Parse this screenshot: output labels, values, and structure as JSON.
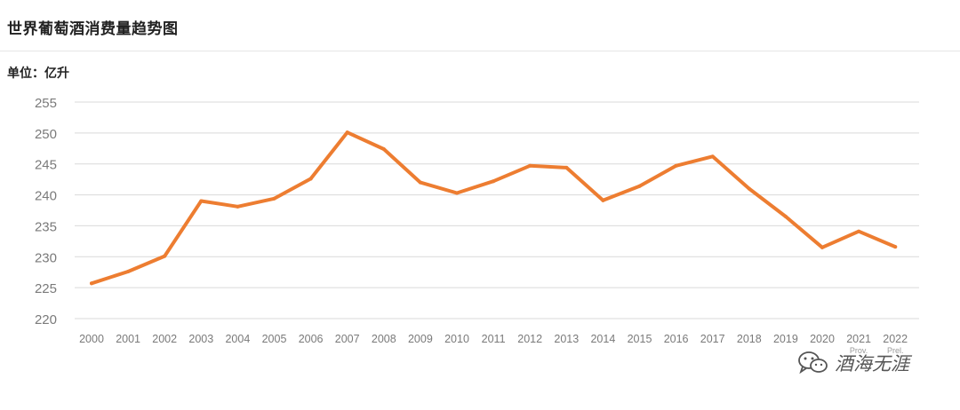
{
  "header": {
    "title": "世界葡萄酒消费量趋势图"
  },
  "unit_label": "单位：亿升",
  "watermark": {
    "text": "酒海无涯",
    "icon": "wechat-icon"
  },
  "chart_data": {
    "type": "line",
    "title": "世界葡萄酒消费量趋势图",
    "ylabel": "单位：亿升",
    "xlabel": "",
    "categories": [
      "2000",
      "2001",
      "2002",
      "2003",
      "2004",
      "2005",
      "2006",
      "2007",
      "2008",
      "2009",
      "2010",
      "2011",
      "2012",
      "2013",
      "2014",
      "2015",
      "2016",
      "2017",
      "2018",
      "2019",
      "2020",
      "2021",
      "2022"
    ],
    "category_notes": {
      "2021": "Prov.",
      "2022": "Prel."
    },
    "series": [
      {
        "values": [
          225.7,
          227.6,
          230.1,
          239.0,
          238.1,
          239.4,
          242.6,
          250.1,
          247.4,
          242.0,
          240.3,
          242.2,
          244.7,
          244.4,
          239.1,
          241.4,
          244.7,
          246.2,
          241.0,
          236.5,
          231.5,
          234.1,
          231.6
        ]
      }
    ],
    "yticks": [
      220,
      225,
      230,
      235,
      240,
      245,
      250,
      255
    ],
    "ylim": [
      220,
      255
    ],
    "grid": true,
    "colors": {
      "line": "#ED7D31",
      "grid": "#d9d9d9",
      "tick": "#7a7a7a"
    }
  }
}
